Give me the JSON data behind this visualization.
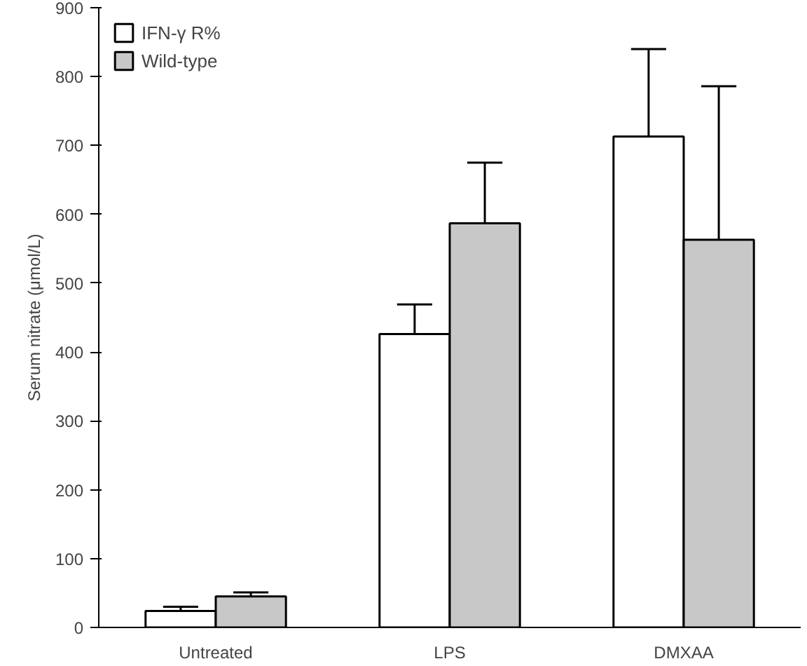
{
  "chart_data": {
    "type": "bar",
    "ylabel": "Serum nitrate (μmol/L)",
    "categories": [
      "Untreated",
      "LPS",
      "DMXAA"
    ],
    "series": [
      {
        "name": "IFN-γ R%",
        "color": "#ffffff",
        "values": [
          24,
          426,
          713
        ],
        "errors": [
          [
            24,
            30
          ],
          [
            426,
            469
          ],
          [
            713,
            840
          ]
        ]
      },
      {
        "name": "Wild-type",
        "color": "#c8c8c8",
        "values": [
          45,
          587,
          563
        ],
        "errors": [
          [
            45,
            51
          ],
          [
            587,
            675
          ],
          [
            563,
            786
          ]
        ]
      }
    ],
    "ylim": [
      0,
      900
    ],
    "yticks": [
      0,
      100,
      200,
      300,
      400,
      500,
      600,
      700,
      800,
      900
    ],
    "grid": false,
    "legend": "top left"
  }
}
